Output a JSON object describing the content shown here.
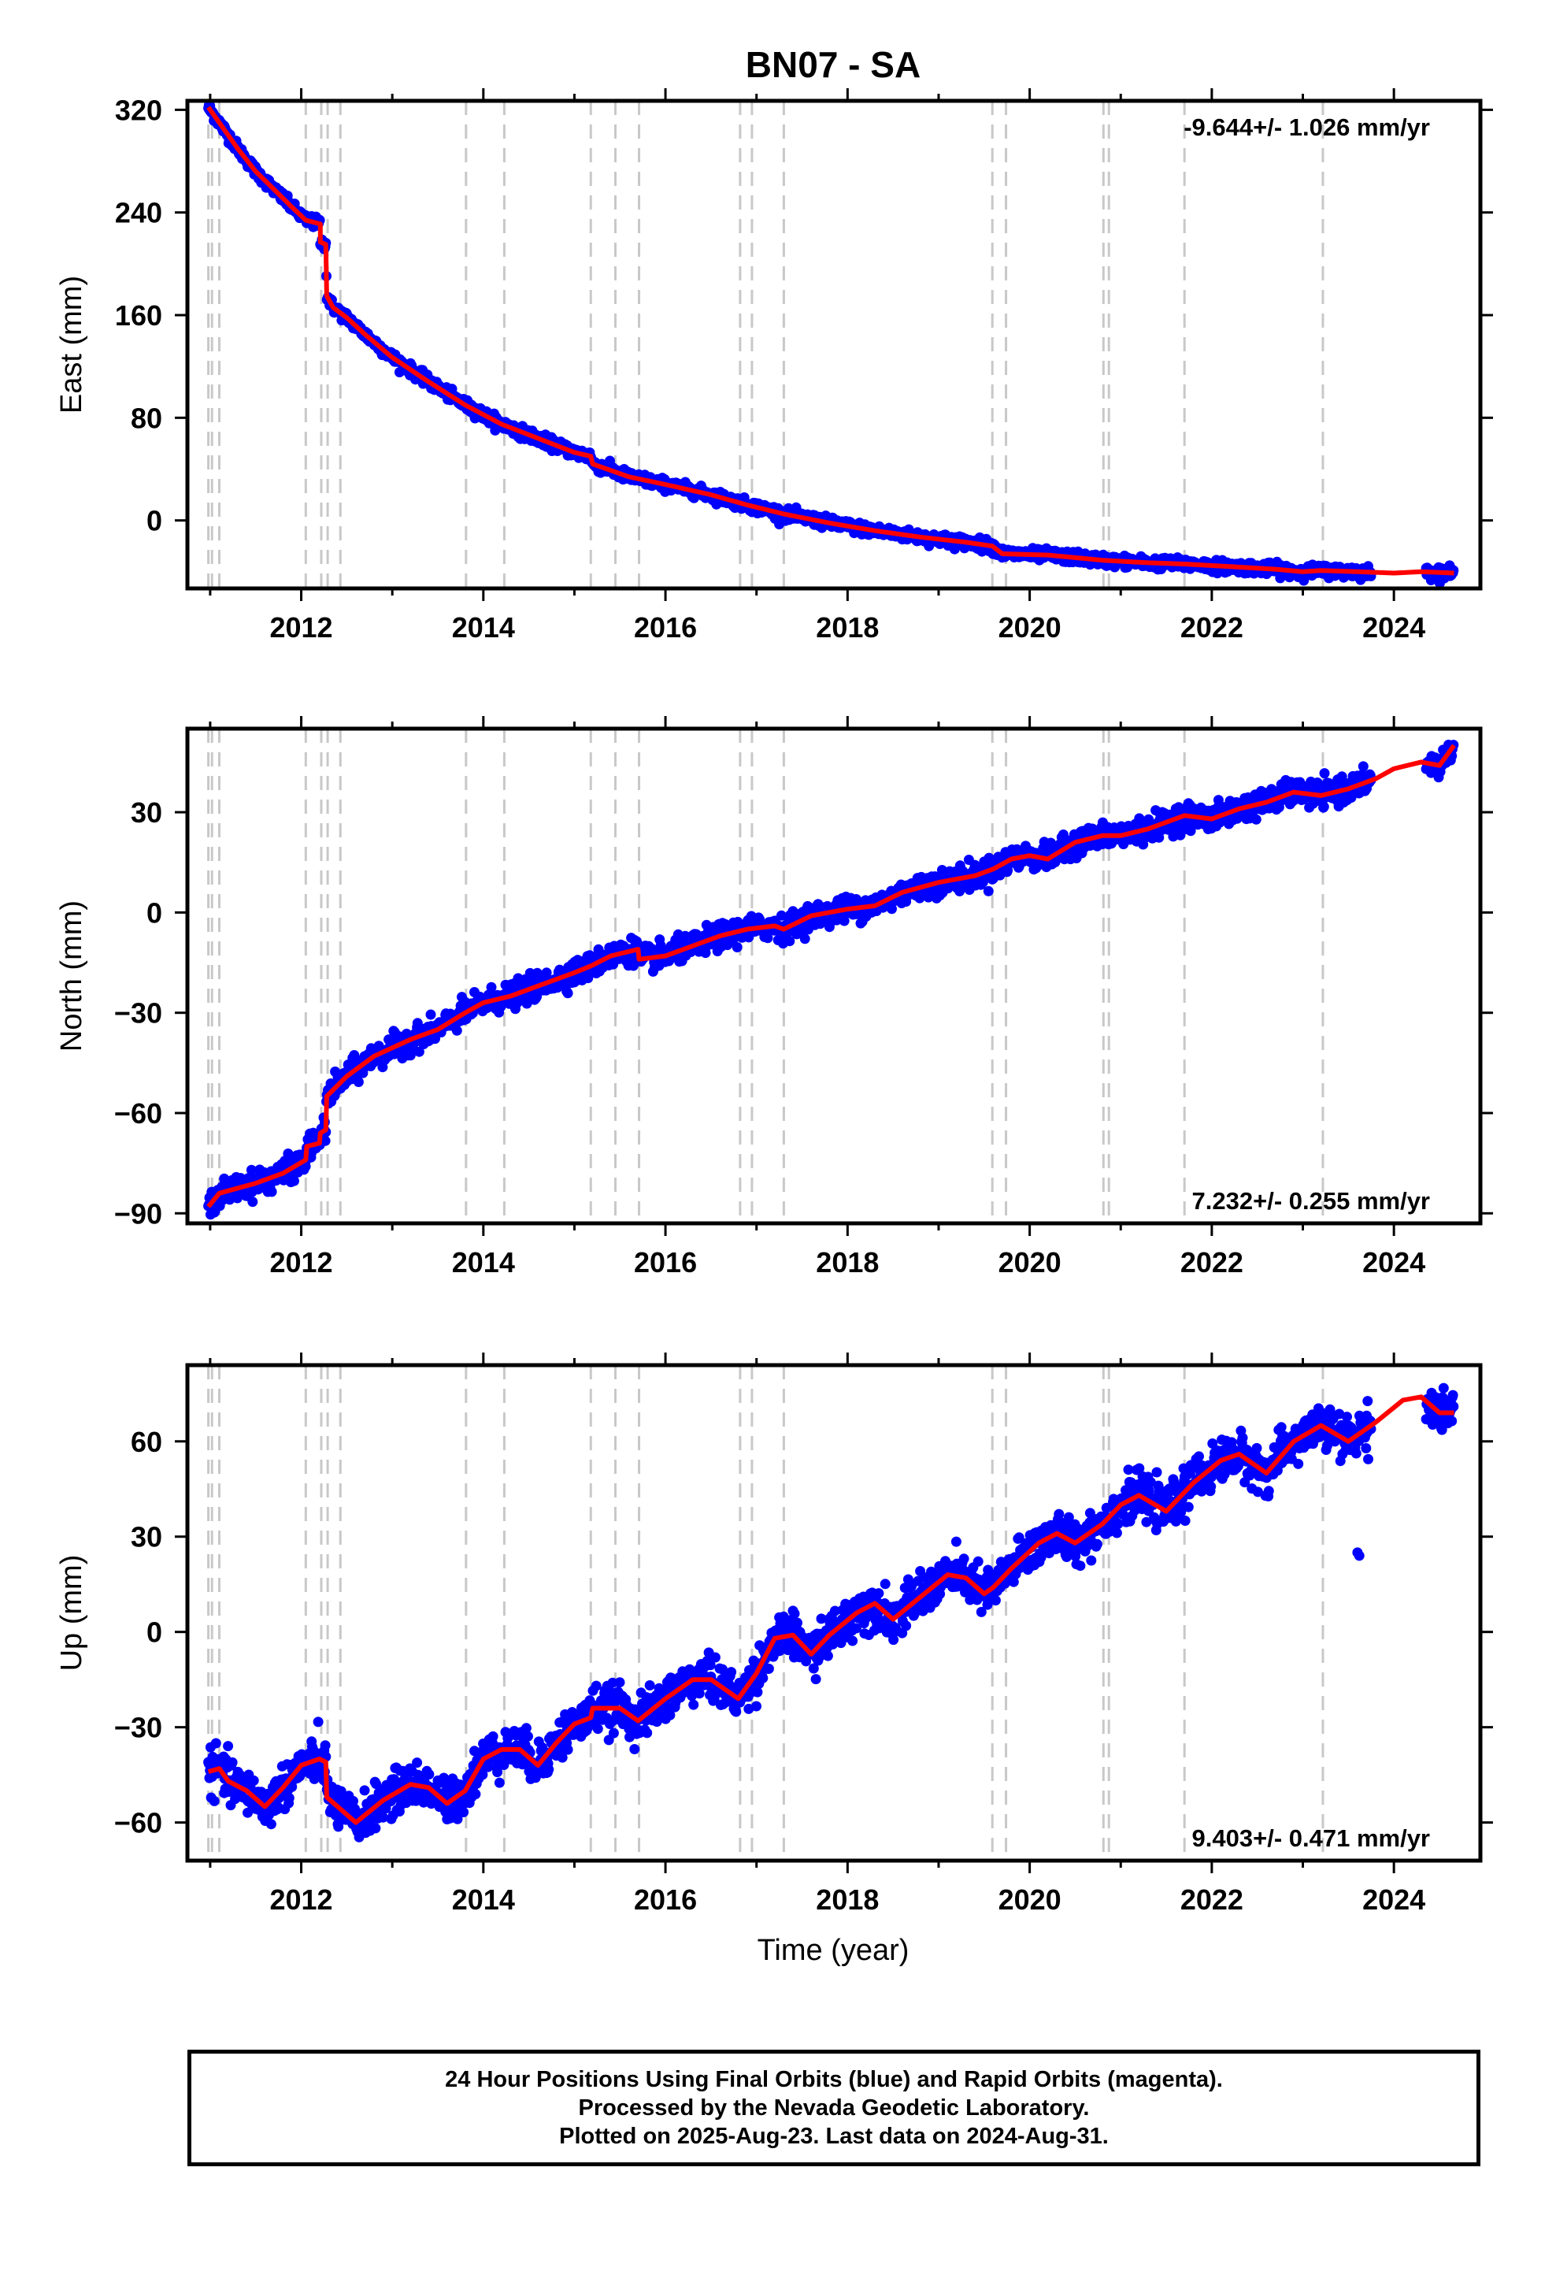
{
  "colors": {
    "final_orbits": "#0000ff",
    "model": "#ff0000",
    "event_lines": "#c8c8c8",
    "frame": "#000000"
  },
  "chart_data": {
    "type": "scatter",
    "title": "BN07 - SA",
    "xlabel": "Time (year)",
    "xlim": [
      2010.75,
      2024.95
    ],
    "x_ticks": [
      2012,
      2014,
      2016,
      2018,
      2020,
      2022,
      2024
    ],
    "event_lines_year": [
      2010.98,
      2011.02,
      2011.1,
      2012.05,
      2012.22,
      2012.29,
      2012.43,
      2013.81,
      2014.23,
      2015.18,
      2015.45,
      2015.71,
      2016.82,
      2016.95,
      2017.3,
      2019.59,
      2019.74,
      2020.81,
      2020.87,
      2021.7,
      2023.22
    ],
    "panels": [
      {
        "key": "east",
        "ylabel": "East (mm)",
        "ylim": [
          -53,
          327
        ],
        "y_ticks": [
          320,
          240,
          160,
          80,
          0
        ],
        "rate_label": "-9.644+/- 1.026 mm/yr",
        "rate_position": "top-right",
        "model_curve": [
          [
            2010.98,
            322
          ],
          [
            2011.1,
            310
          ],
          [
            2011.3,
            290
          ],
          [
            2011.5,
            272
          ],
          [
            2011.7,
            258
          ],
          [
            2011.9,
            244
          ],
          [
            2012.05,
            234
          ],
          [
            2012.21,
            231
          ],
          [
            2012.21,
            217
          ],
          [
            2012.27,
            215
          ],
          [
            2012.28,
            175
          ],
          [
            2012.35,
            166
          ],
          [
            2012.5,
            158
          ],
          [
            2012.7,
            145
          ],
          [
            2013.0,
            127
          ],
          [
            2013.4,
            108
          ],
          [
            2013.8,
            90
          ],
          [
            2014.2,
            75
          ],
          [
            2014.6,
            64
          ],
          [
            2015.0,
            53
          ],
          [
            2015.18,
            50
          ],
          [
            2015.2,
            44
          ],
          [
            2015.6,
            34
          ],
          [
            2016.0,
            28
          ],
          [
            2016.5,
            20
          ],
          [
            2016.9,
            12
          ],
          [
            2017.3,
            5
          ],
          [
            2017.8,
            -2
          ],
          [
            2018.3,
            -8
          ],
          [
            2018.8,
            -13
          ],
          [
            2019.3,
            -17
          ],
          [
            2019.59,
            -20
          ],
          [
            2019.7,
            -26
          ],
          [
            2020.2,
            -27
          ],
          [
            2020.8,
            -31
          ],
          [
            2021.3,
            -33
          ],
          [
            2021.7,
            -34
          ],
          [
            2022.2,
            -36
          ],
          [
            2022.7,
            -38
          ],
          [
            2023.0,
            -40
          ],
          [
            2023.2,
            -39
          ],
          [
            2023.6,
            -40
          ],
          [
            2024.0,
            -41
          ],
          [
            2024.3,
            -40
          ],
          [
            2024.66,
            -41
          ]
        ],
        "scatter_sigma": 2.2
      },
      {
        "key": "north",
        "ylabel": "North (mm)",
        "ylim": [
          -93,
          55
        ],
        "y_ticks": [
          30,
          0,
          -30,
          -60,
          -90
        ],
        "rate_label": "7.232+/- 0.255 mm/yr",
        "rate_position": "bottom-right",
        "model_curve": [
          [
            2010.98,
            -88
          ],
          [
            2011.1,
            -84
          ],
          [
            2011.5,
            -81
          ],
          [
            2011.8,
            -78
          ],
          [
            2012.05,
            -74
          ],
          [
            2012.06,
            -70
          ],
          [
            2012.2,
            -69
          ],
          [
            2012.21,
            -66
          ],
          [
            2012.27,
            -65
          ],
          [
            2012.28,
            -55
          ],
          [
            2012.5,
            -49
          ],
          [
            2012.8,
            -43
          ],
          [
            2013.2,
            -38
          ],
          [
            2013.5,
            -35
          ],
          [
            2013.8,
            -30
          ],
          [
            2014.0,
            -27
          ],
          [
            2014.3,
            -25
          ],
          [
            2014.6,
            -22
          ],
          [
            2015.0,
            -18
          ],
          [
            2015.18,
            -16
          ],
          [
            2015.4,
            -13
          ],
          [
            2015.7,
            -11
          ],
          [
            2015.71,
            -14
          ],
          [
            2016.0,
            -13
          ],
          [
            2016.3,
            -10
          ],
          [
            2016.6,
            -7
          ],
          [
            2016.9,
            -5
          ],
          [
            2017.2,
            -4
          ],
          [
            2017.3,
            -5
          ],
          [
            2017.6,
            -1
          ],
          [
            2018.0,
            1
          ],
          [
            2018.3,
            2
          ],
          [
            2018.6,
            6
          ],
          [
            2019.0,
            9
          ],
          [
            2019.4,
            11
          ],
          [
            2019.6,
            13
          ],
          [
            2019.8,
            16
          ],
          [
            2020.0,
            17
          ],
          [
            2020.2,
            16
          ],
          [
            2020.5,
            21
          ],
          [
            2020.8,
            23
          ],
          [
            2021.0,
            23
          ],
          [
            2021.3,
            25
          ],
          [
            2021.7,
            29
          ],
          [
            2022.0,
            28
          ],
          [
            2022.3,
            31
          ],
          [
            2022.6,
            33
          ],
          [
            2022.9,
            36
          ],
          [
            2023.2,
            35
          ],
          [
            2023.5,
            37
          ],
          [
            2023.8,
            40
          ],
          [
            2024.0,
            43
          ],
          [
            2024.3,
            45
          ],
          [
            2024.5,
            44
          ],
          [
            2024.66,
            50
          ]
        ],
        "scatter_sigma": 1.8
      },
      {
        "key": "up",
        "ylabel": "Up (mm)",
        "ylim": [
          -72,
          84
        ],
        "y_ticks": [
          60,
          30,
          0,
          -30,
          -60
        ],
        "rate_label": "9.403+/- 0.471 mm/yr",
        "rate_position": "bottom-right",
        "model_curve": [
          [
            2010.98,
            -44
          ],
          [
            2011.1,
            -43
          ],
          [
            2011.2,
            -47
          ],
          [
            2011.4,
            -50
          ],
          [
            2011.6,
            -55
          ],
          [
            2011.8,
            -49
          ],
          [
            2012.0,
            -42
          ],
          [
            2012.2,
            -40
          ],
          [
            2012.27,
            -41
          ],
          [
            2012.28,
            -52
          ],
          [
            2012.4,
            -55
          ],
          [
            2012.6,
            -60
          ],
          [
            2012.9,
            -53
          ],
          [
            2013.2,
            -48
          ],
          [
            2013.4,
            -49
          ],
          [
            2013.6,
            -54
          ],
          [
            2013.8,
            -50
          ],
          [
            2014.0,
            -40
          ],
          [
            2014.2,
            -37
          ],
          [
            2014.4,
            -37
          ],
          [
            2014.6,
            -42
          ],
          [
            2014.8,
            -35
          ],
          [
            2015.0,
            -29
          ],
          [
            2015.18,
            -27
          ],
          [
            2015.2,
            -24
          ],
          [
            2015.5,
            -24
          ],
          [
            2015.7,
            -28
          ],
          [
            2016.0,
            -21
          ],
          [
            2016.3,
            -15
          ],
          [
            2016.5,
            -15
          ],
          [
            2016.8,
            -21
          ],
          [
            2017.0,
            -13
          ],
          [
            2017.2,
            -2
          ],
          [
            2017.4,
            -1
          ],
          [
            2017.6,
            -7
          ],
          [
            2017.8,
            -1
          ],
          [
            2018.1,
            6
          ],
          [
            2018.3,
            9
          ],
          [
            2018.5,
            4
          ],
          [
            2018.8,
            11
          ],
          [
            2019.1,
            18
          ],
          [
            2019.3,
            17
          ],
          [
            2019.5,
            12
          ],
          [
            2019.6,
            14
          ],
          [
            2019.8,
            20
          ],
          [
            2020.1,
            28
          ],
          [
            2020.3,
            31
          ],
          [
            2020.5,
            28
          ],
          [
            2020.8,
            34
          ],
          [
            2021.0,
            40
          ],
          [
            2021.2,
            43
          ],
          [
            2021.5,
            38
          ],
          [
            2021.8,
            47
          ],
          [
            2022.1,
            54
          ],
          [
            2022.3,
            56
          ],
          [
            2022.6,
            50
          ],
          [
            2022.9,
            60
          ],
          [
            2023.2,
            65
          ],
          [
            2023.5,
            60
          ],
          [
            2023.8,
            66
          ],
          [
            2024.1,
            73
          ],
          [
            2024.3,
            74
          ],
          [
            2024.5,
            69
          ],
          [
            2024.66,
            69
          ]
        ],
        "scatter_sigma": 3.3,
        "outliers": [
          [
            2023.6,
            25
          ],
          [
            2023.62,
            24
          ]
        ]
      }
    ]
  },
  "footer": {
    "line1": "24 Hour Positions Using Final Orbits (blue) and Rapid Orbits (magenta).",
    "line2": "Processed by the Nevada Geodetic Laboratory.",
    "line3": "Plotted on 2025-Aug-23. Last data on 2024-Aug-31."
  }
}
